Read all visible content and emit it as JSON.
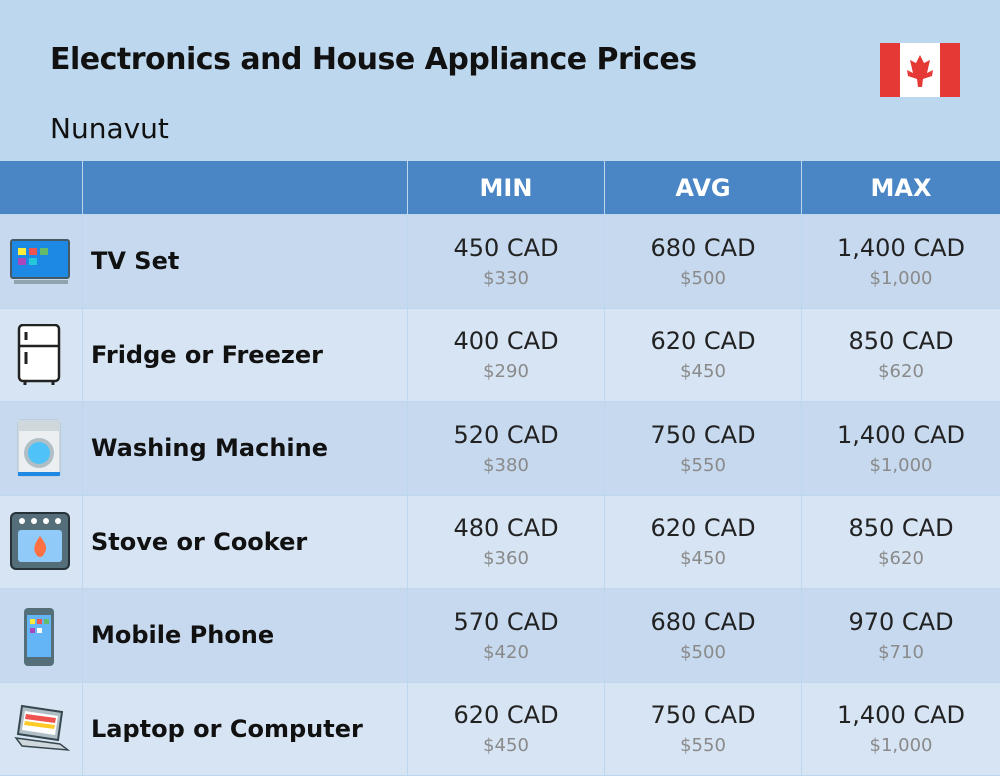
{
  "header": {
    "title": "Electronics and House Appliance Prices",
    "subtitle": "Nunavut"
  },
  "table": {
    "columns": [
      "MIN",
      "AVG",
      "MAX"
    ],
    "rows": [
      {
        "name": "TV Set",
        "cells": [
          {
            "local": "450 CAD",
            "usd": "$330"
          },
          {
            "local": "680 CAD",
            "usd": "$500"
          },
          {
            "local": "1,400 CAD",
            "usd": "$1,000"
          }
        ]
      },
      {
        "name": "Fridge or Freezer",
        "cells": [
          {
            "local": "400 CAD",
            "usd": "$290"
          },
          {
            "local": "620 CAD",
            "usd": "$450"
          },
          {
            "local": "850 CAD",
            "usd": "$620"
          }
        ]
      },
      {
        "name": "Washing Machine",
        "cells": [
          {
            "local": "520 CAD",
            "usd": "$380"
          },
          {
            "local": "750 CAD",
            "usd": "$550"
          },
          {
            "local": "1,400 CAD",
            "usd": "$1,000"
          }
        ]
      },
      {
        "name": "Stove or Cooker",
        "cells": [
          {
            "local": "480 CAD",
            "usd": "$360"
          },
          {
            "local": "620 CAD",
            "usd": "$450"
          },
          {
            "local": "850 CAD",
            "usd": "$620"
          }
        ]
      },
      {
        "name": "Mobile Phone",
        "cells": [
          {
            "local": "570 CAD",
            "usd": "$420"
          },
          {
            "local": "680 CAD",
            "usd": "$500"
          },
          {
            "local": "970 CAD",
            "usd": "$710"
          }
        ]
      },
      {
        "name": "Laptop or Computer",
        "cells": [
          {
            "local": "620 CAD",
            "usd": "$450"
          },
          {
            "local": "750 CAD",
            "usd": "$550"
          },
          {
            "local": "1,400 CAD",
            "usd": "$1,000"
          }
        ]
      }
    ]
  }
}
